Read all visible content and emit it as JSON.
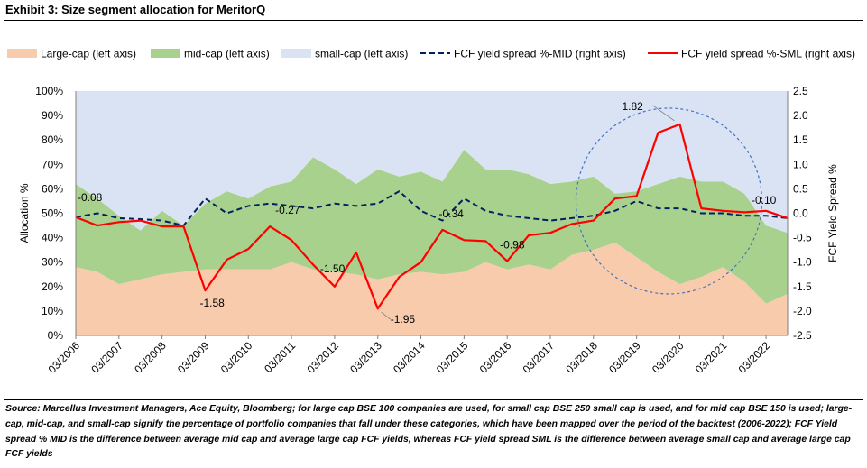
{
  "title": "Exhibit 3: Size segment allocation for MeritorQ",
  "source": "Source: Marcellus Investment Managers, Ace Equity, Bloomberg; for large cap BSE 100 companies are used, for small cap BSE 250 small cap is used, and for mid cap BSE 150 is used; large-cap, mid-cap, and small-cap signify the percentage of portfolio companies that fall under these categories, which have been mapped over the period of the backtest (2006-2022); FCF Yield spread % MID is the difference between average mid cap and average large cap FCF yields, whereas FCF yield spread SML is the difference between average small cap and average large cap FCF yields",
  "chart_data": {
    "type": "area",
    "ylabel": "Allocation %",
    "y2label": "FCF Yield Spread %",
    "ylim": [
      0,
      100
    ],
    "y2lim": [
      -2.5,
      2.5
    ],
    "yticks": [
      "0%",
      "10%",
      "20%",
      "30%",
      "40%",
      "50%",
      "60%",
      "70%",
      "80%",
      "90%",
      "100%"
    ],
    "y2ticks": [
      "-2.5",
      "-2.0",
      "-1.5",
      "-1.0",
      "-0.5",
      "0.0",
      "0.5",
      "1.0",
      "1.5",
      "2.0",
      "2.5"
    ],
    "xticks": [
      "03/2006",
      "03/2007",
      "03/2008",
      "03/2009",
      "03/2010",
      "03/2011",
      "03/2012",
      "03/2013",
      "03/2014",
      "03/2015",
      "03/2016",
      "03/2017",
      "03/2018",
      "03/2019",
      "03/2020",
      "03/2021",
      "03/2022"
    ],
    "x": [
      "03/2006",
      "09/2006",
      "03/2007",
      "09/2007",
      "03/2008",
      "09/2008",
      "03/2009",
      "09/2009",
      "03/2010",
      "09/2010",
      "03/2011",
      "09/2011",
      "03/2012",
      "09/2012",
      "03/2013",
      "09/2013",
      "03/2014",
      "09/2014",
      "03/2015",
      "09/2015",
      "03/2016",
      "09/2016",
      "03/2017",
      "09/2017",
      "03/2018",
      "09/2018",
      "03/2019",
      "09/2019",
      "03/2020",
      "09/2020",
      "03/2021",
      "09/2021",
      "03/2022",
      "09/2022"
    ],
    "legend_position": "top",
    "series": [
      {
        "name": "Large-cap (left axis)",
        "kind": "area",
        "axis": "left",
        "color": "#F8CBAD",
        "values": [
          28,
          26,
          21,
          23,
          25,
          26,
          27,
          27,
          27,
          27,
          30,
          27,
          26,
          25,
          23,
          25,
          26,
          25,
          26,
          30,
          27,
          29,
          27,
          33,
          35,
          38,
          32,
          26,
          21,
          24,
          28,
          22,
          13,
          17
        ]
      },
      {
        "name": "mid-cap (left axis)",
        "kind": "area",
        "axis": "left",
        "color": "#A9D18E",
        "values": [
          34,
          30,
          28,
          20,
          26,
          19,
          27,
          32,
          29,
          34,
          33,
          46,
          42,
          37,
          45,
          40,
          41,
          38,
          50,
          38,
          41,
          37,
          35,
          30,
          30,
          20,
          27,
          36,
          44,
          39,
          35,
          36,
          32,
          25
        ]
      },
      {
        "name": "small-cap (left axis)",
        "kind": "area",
        "axis": "left",
        "color": "#DAE3F3",
        "values": [
          38,
          44,
          51,
          57,
          49,
          55,
          46,
          41,
          44,
          39,
          37,
          27,
          32,
          38,
          32,
          35,
          33,
          37,
          24,
          32,
          32,
          34,
          38,
          37,
          35,
          42,
          41,
          38,
          35,
          37,
          37,
          42,
          55,
          58
        ]
      },
      {
        "name": "FCF yield spread %-MID (right axis)",
        "kind": "line",
        "axis": "right",
        "color": "#002060",
        "dash": true,
        "values": [
          -0.08,
          0.0,
          -0.1,
          -0.12,
          -0.15,
          -0.25,
          0.3,
          0.0,
          0.15,
          0.2,
          0.15,
          0.1,
          0.2,
          0.15,
          0.2,
          0.45,
          0.05,
          -0.15,
          0.3,
          0.05,
          -0.05,
          -0.1,
          -0.15,
          -0.1,
          -0.05,
          0.05,
          0.25,
          0.1,
          0.1,
          0.0,
          0.0,
          -0.05,
          -0.05,
          -0.1
        ]
      },
      {
        "name": "FCF yield spread %-SML (right axis)",
        "kind": "line",
        "axis": "right",
        "color": "#FF0000",
        "values": [
          -0.08,
          -0.25,
          -0.18,
          -0.15,
          -0.27,
          -0.27,
          -1.58,
          -0.95,
          -0.73,
          -0.27,
          -0.55,
          -1.05,
          -1.5,
          -0.8,
          -1.95,
          -1.3,
          -1.0,
          -0.34,
          -0.55,
          -0.57,
          -0.98,
          -0.45,
          -0.4,
          -0.22,
          -0.15,
          0.3,
          0.35,
          1.65,
          1.82,
          0.1,
          0.05,
          0.02,
          0.05,
          -0.1
        ]
      }
    ],
    "annotations": [
      {
        "text": "-0.08",
        "series": 4,
        "index": 0
      },
      {
        "text": "-1.58",
        "series": 4,
        "index": 6
      },
      {
        "text": "-0.27",
        "series": 4,
        "index": 9
      },
      {
        "text": "-1.50",
        "series": 4,
        "index": 12
      },
      {
        "text": "-1.95",
        "series": 4,
        "index": 14
      },
      {
        "text": "-0.34",
        "series": 4,
        "index": 17
      },
      {
        "text": "-0.98",
        "series": 4,
        "index": 20
      },
      {
        "text": "1.82",
        "series": 4,
        "index": 28
      },
      {
        "text": "-0.10",
        "series": 4,
        "index": 33
      }
    ],
    "highlight": {
      "shape": "dashed-circle",
      "color": "#4472C4"
    }
  }
}
